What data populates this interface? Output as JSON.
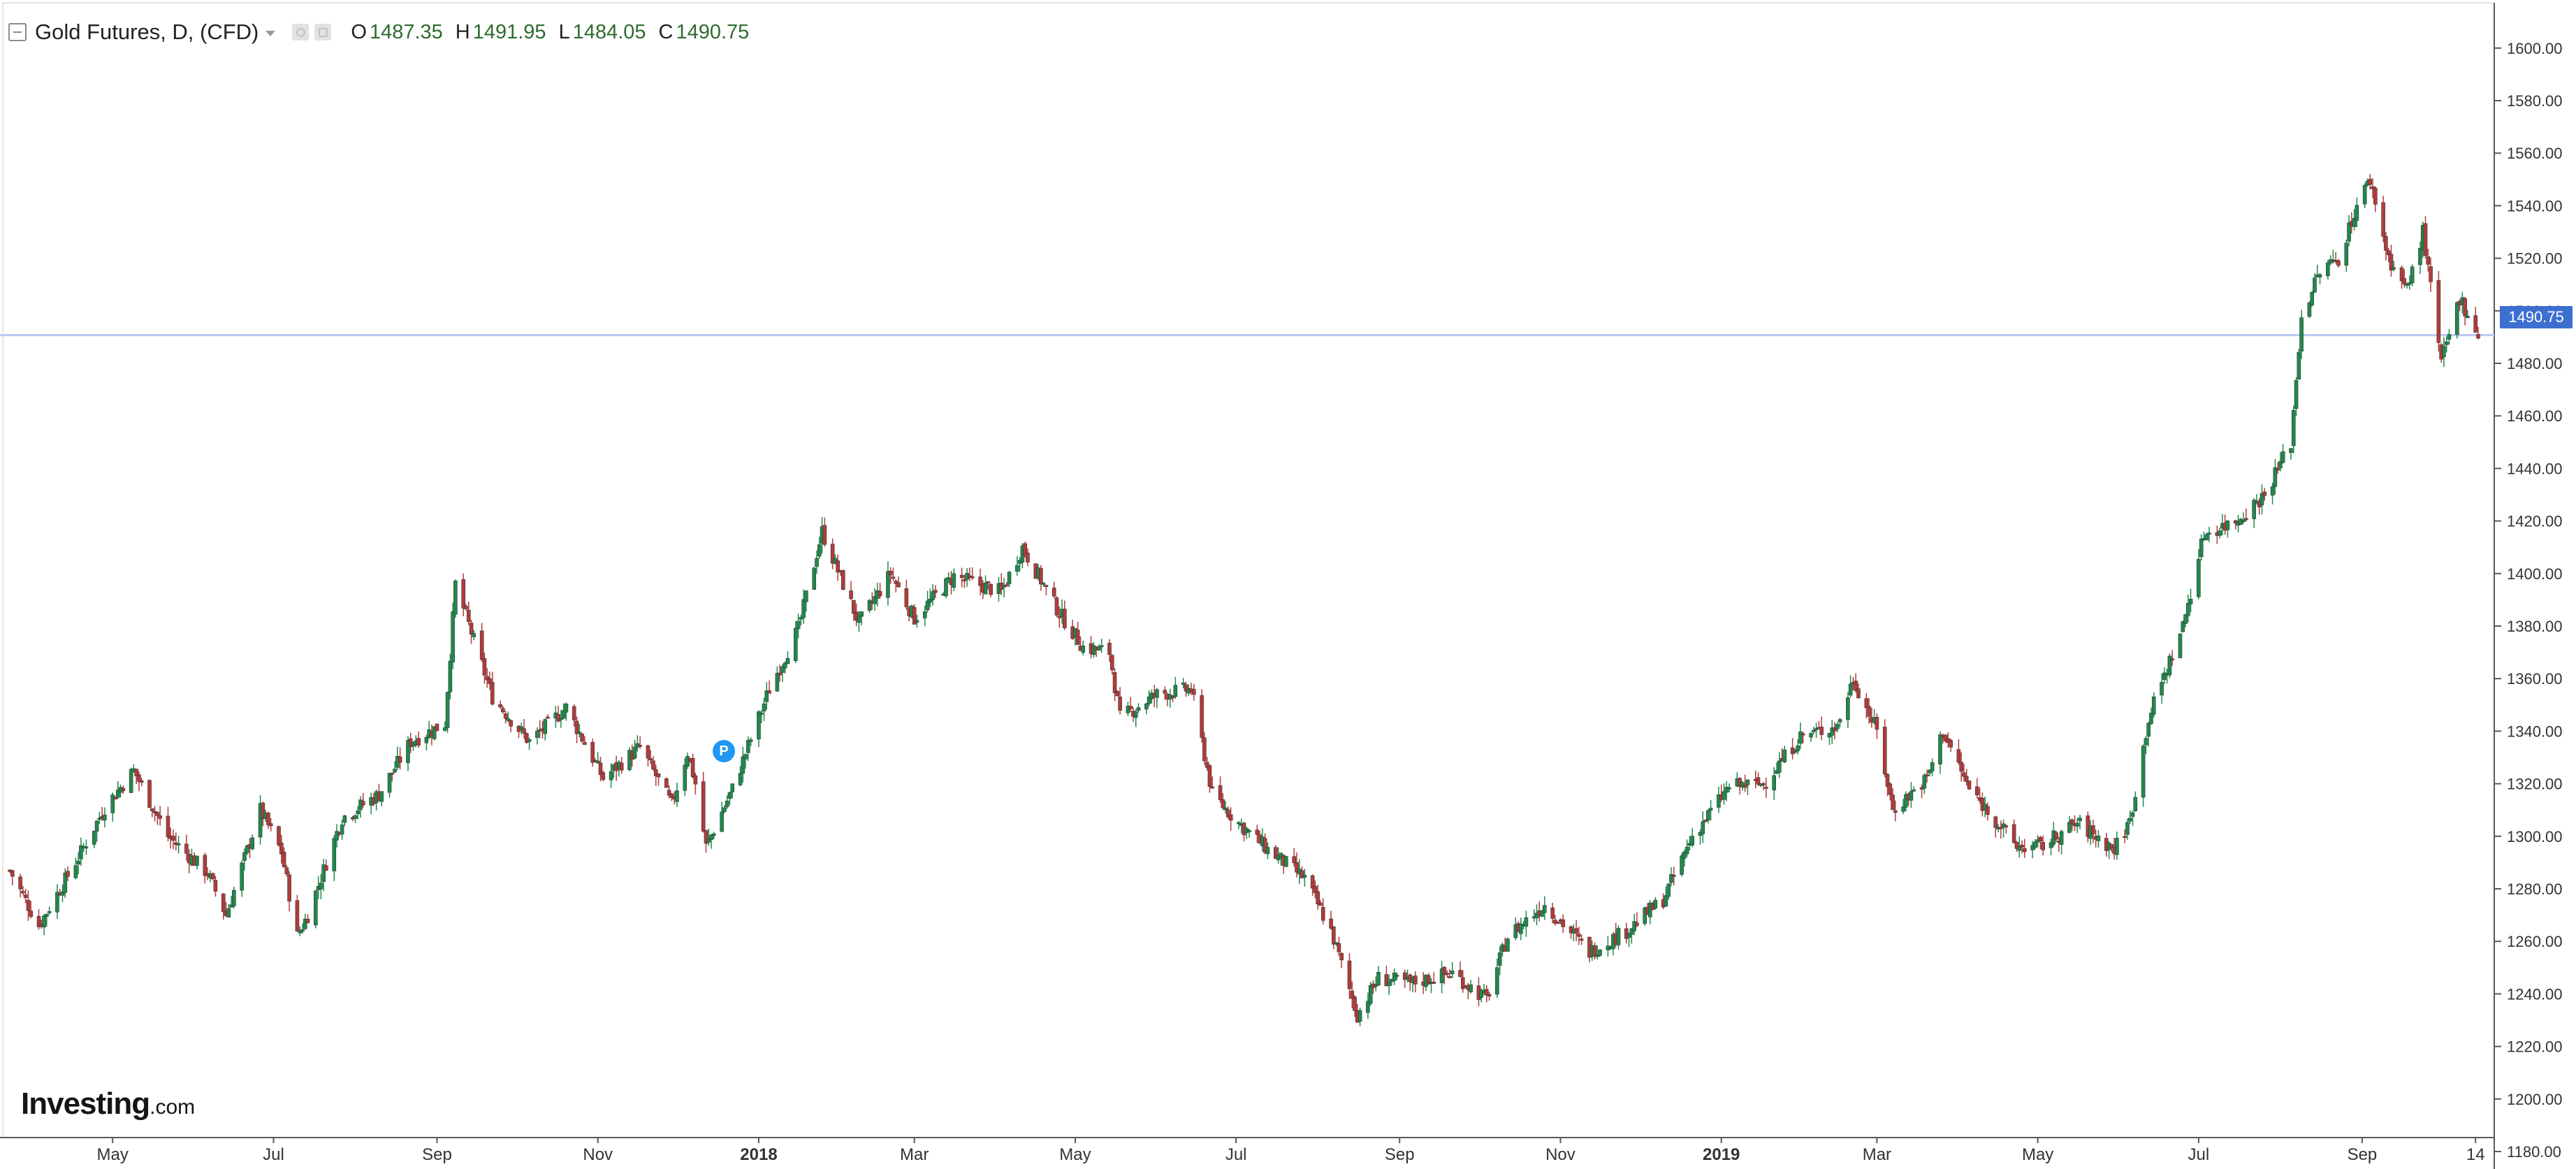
{
  "legend": {
    "title": "Gold Futures, D, (CFD)",
    "open_label": "O",
    "open": "1487.35",
    "high_label": "H",
    "high": "1491.95",
    "low_label": "L",
    "low": "1484.05",
    "close_label": "C",
    "close": "1490.75",
    "icons": [
      "collapse-icon",
      "dropdown-caret-icon",
      "eye-icon",
      "settings-icon"
    ]
  },
  "logo": {
    "brand": "Investing",
    "domain": ".com"
  },
  "marker": {
    "label": "P",
    "date": "2017-12-08"
  },
  "last_price_label": "1490.75",
  "colors": {
    "up": "#1e8a4c",
    "down": "#b23b3b",
    "last_price_line": "#b9c9f5",
    "last_price_tag": "#3d6fd1",
    "marker": "#2196f3"
  },
  "chart_data": {
    "type": "candlestick",
    "title": "Gold Futures, D, (CFD)",
    "x_range": [
      "2017-03-23",
      "2019-10-15"
    ],
    "ylim": [
      1180,
      1610
    ],
    "y_ticks": [
      1180,
      1200,
      1220,
      1240,
      1260,
      1280,
      1300,
      1320,
      1340,
      1360,
      1380,
      1400,
      1420,
      1440,
      1460,
      1480,
      1500,
      1520,
      1540,
      1560,
      1580,
      1600
    ],
    "y_tick_labels": [
      "1180.00",
      "1200.00",
      "1220.00",
      "1240.00",
      "1260.00",
      "1280.00",
      "1300.00",
      "1320.00",
      "1340.00",
      "1360.00",
      "1380.00",
      "1400.00",
      "1420.00",
      "1440.00",
      "1460.00",
      "1480.00",
      "1500.00",
      "1520.00",
      "1540.00",
      "1560.00",
      "1580.00",
      "1600.00"
    ],
    "x_ticks": [
      {
        "label": "May",
        "date": "2017-05-01",
        "bold": false
      },
      {
        "label": "Jul",
        "date": "2017-07-01",
        "bold": false
      },
      {
        "label": "Sep",
        "date": "2017-09-01",
        "bold": false
      },
      {
        "label": "Nov",
        "date": "2017-11-01",
        "bold": false
      },
      {
        "label": "2018",
        "date": "2018-01-01",
        "bold": true
      },
      {
        "label": "Mar",
        "date": "2018-03-01",
        "bold": false
      },
      {
        "label": "May",
        "date": "2018-05-01",
        "bold": false
      },
      {
        "label": "Jul",
        "date": "2018-07-01",
        "bold": false
      },
      {
        "label": "Sep",
        "date": "2018-09-01",
        "bold": false
      },
      {
        "label": "Nov",
        "date": "2018-11-01",
        "bold": false
      },
      {
        "label": "2019",
        "date": "2019-01-01",
        "bold": true
      },
      {
        "label": "Mar",
        "date": "2019-03-01",
        "bold": false
      },
      {
        "label": "May",
        "date": "2019-05-01",
        "bold": false
      },
      {
        "label": "Jul",
        "date": "2019-07-01",
        "bold": false
      },
      {
        "label": "Sep",
        "date": "2019-09-01",
        "bold": false
      },
      {
        "label": "14",
        "date": "2019-10-14",
        "bold": false
      }
    ],
    "last_price": 1490.75,
    "close_path": [
      [
        "2017-03-23",
        1287
      ],
      [
        "2017-04-03",
        1266
      ],
      [
        "2017-04-18",
        1292
      ],
      [
        "2017-04-28",
        1311
      ],
      [
        "2017-05-09",
        1325
      ],
      [
        "2017-05-22",
        1300
      ],
      [
        "2017-06-06",
        1286
      ],
      [
        "2017-06-13",
        1270
      ],
      [
        "2017-06-26",
        1310
      ],
      [
        "2017-07-04",
        1294
      ],
      [
        "2017-07-10",
        1262
      ],
      [
        "2017-07-14",
        1270
      ],
      [
        "2017-07-27",
        1307
      ],
      [
        "2017-08-10",
        1316
      ],
      [
        "2017-08-22",
        1336
      ],
      [
        "2017-09-04",
        1343
      ],
      [
        "2017-09-08",
        1396
      ],
      [
        "2017-09-22",
        1353
      ],
      [
        "2017-10-06",
        1336
      ],
      [
        "2017-10-20",
        1349
      ],
      [
        "2017-11-03",
        1322
      ],
      [
        "2017-11-17",
        1334
      ],
      [
        "2017-11-29",
        1312
      ],
      [
        "2017-12-05",
        1332
      ],
      [
        "2017-12-08",
        1320
      ],
      [
        "2017-12-12",
        1296
      ],
      [
        "2017-12-22",
        1318
      ],
      [
        "2018-01-05",
        1356
      ],
      [
        "2018-01-16",
        1379
      ],
      [
        "2018-01-25",
        1416
      ],
      [
        "2018-02-08",
        1381
      ],
      [
        "2018-02-20",
        1400
      ],
      [
        "2018-03-01",
        1383
      ],
      [
        "2018-03-16",
        1399
      ],
      [
        "2018-04-03",
        1393
      ],
      [
        "2018-04-11",
        1410
      ],
      [
        "2018-04-25",
        1385
      ],
      [
        "2018-05-04",
        1372
      ],
      [
        "2018-05-14",
        1370
      ],
      [
        "2018-05-18",
        1345
      ],
      [
        "2018-06-01",
        1354
      ],
      [
        "2018-06-14",
        1356
      ],
      [
        "2018-06-22",
        1316
      ],
      [
        "2018-07-02",
        1305
      ],
      [
        "2018-07-13",
        1295
      ],
      [
        "2018-07-27",
        1284
      ],
      [
        "2018-08-06",
        1264
      ],
      [
        "2018-08-16",
        1232
      ],
      [
        "2018-08-24",
        1246
      ],
      [
        "2018-09-05",
        1244
      ],
      [
        "2018-09-21",
        1248
      ],
      [
        "2018-10-04",
        1238
      ],
      [
        "2018-10-12",
        1262
      ],
      [
        "2018-10-26",
        1274
      ],
      [
        "2018-11-12",
        1256
      ],
      [
        "2018-11-26",
        1264
      ],
      [
        "2018-12-10",
        1276
      ],
      [
        "2018-12-21",
        1300
      ],
      [
        "2019-01-04",
        1319
      ],
      [
        "2019-01-17",
        1320
      ],
      [
        "2019-01-31",
        1338
      ],
      [
        "2019-02-14",
        1342
      ],
      [
        "2019-02-20",
        1360
      ],
      [
        "2019-03-01",
        1340
      ],
      [
        "2019-03-07",
        1310
      ],
      [
        "2019-03-20",
        1322
      ],
      [
        "2019-03-26",
        1340
      ],
      [
        "2019-04-05",
        1318
      ],
      [
        "2019-04-16",
        1305
      ],
      [
        "2019-04-23",
        1296
      ],
      [
        "2019-05-02",
        1296
      ],
      [
        "2019-05-16",
        1305
      ],
      [
        "2019-05-30",
        1295
      ],
      [
        "2019-06-05",
        1306
      ],
      [
        "2019-06-12",
        1345
      ],
      [
        "2019-06-25",
        1380
      ],
      [
        "2019-07-03",
        1415
      ],
      [
        "2019-07-15",
        1420
      ],
      [
        "2019-07-26",
        1430
      ],
      [
        "2019-08-05",
        1450
      ],
      [
        "2019-08-09",
        1498
      ],
      [
        "2019-08-16",
        1515
      ],
      [
        "2019-08-23",
        1520
      ],
      [
        "2019-08-30",
        1540
      ],
      [
        "2019-09-04",
        1550
      ],
      [
        "2019-09-11",
        1520
      ],
      [
        "2019-09-18",
        1508
      ],
      [
        "2019-09-24",
        1530
      ],
      [
        "2019-10-01",
        1480
      ],
      [
        "2019-10-08",
        1505
      ],
      [
        "2019-10-15",
        1490.75
      ]
    ]
  }
}
